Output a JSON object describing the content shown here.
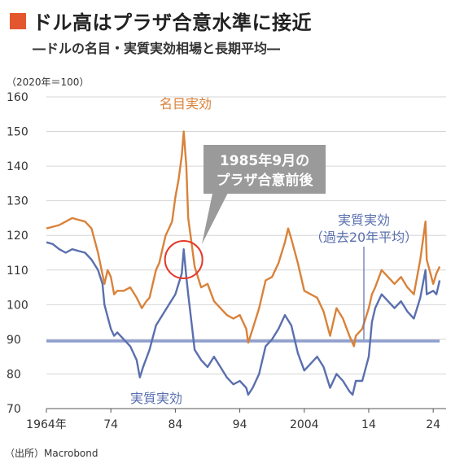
{
  "header": {
    "title": "ドル高はプラザ合意水準に接近",
    "subtitle": "―ドルの名目・実質実効相場と長期平均―"
  },
  "unit_label": "（2020年＝100）",
  "source": "（出所）Macrobond",
  "colors": {
    "nominal": "#d9823a",
    "real": "#5a6fae",
    "average": "#8f9fce",
    "accent": "#e4572e",
    "circle": "#e33a2a",
    "callout": "#9a9a9a"
  },
  "chart_data": {
    "type": "line",
    "xlim": [
      1964,
      2026
    ],
    "ylim": [
      70,
      160
    ],
    "y_ticks": [
      70,
      80,
      90,
      100,
      110,
      120,
      130,
      140,
      150,
      160
    ],
    "x_ticks": [
      {
        "value": 1964,
        "label": "1964年"
      },
      {
        "value": 1974,
        "label": "74"
      },
      {
        "value": 1984,
        "label": "84"
      },
      {
        "value": 1994,
        "label": "94"
      },
      {
        "value": 2004,
        "label": "2004"
      },
      {
        "value": 2014,
        "label": "14"
      },
      {
        "value": 2024,
        "label": "24"
      }
    ],
    "series": [
      {
        "name": "名目実効",
        "x": [
          1964,
          1965,
          1966,
          1967,
          1968,
          1969,
          1970,
          1971,
          1972,
          1973,
          1973.5,
          1974,
          1974.5,
          1975,
          1976,
          1977,
          1978,
          1978.8,
          1979.5,
          1980,
          1981,
          1981.5,
          1982,
          1982.5,
          1983,
          1983.5,
          1984,
          1984.5,
          1985,
          1985.3,
          1985.7,
          1986,
          1986.5,
          1987,
          1988,
          1989,
          1990,
          1991,
          1992,
          1993,
          1994,
          1995,
          1995.3,
          1996,
          1997,
          1998,
          1999,
          2000,
          2001,
          2001.5,
          2002,
          2003,
          2004,
          2005,
          2006,
          2007,
          2008,
          2008.5,
          2009,
          2010,
          2011,
          2011.7,
          2012,
          2013,
          2014,
          2014.5,
          2015,
          2016,
          2017,
          2018,
          2019,
          2020,
          2021,
          2022,
          2022.8,
          2023,
          2024,
          2024.5,
          2025
        ],
        "values": [
          122,
          122.5,
          123,
          124,
          125,
          124.5,
          124,
          122,
          115,
          106,
          110,
          108,
          103,
          104,
          104,
          105,
          102,
          99,
          101,
          102,
          110,
          112,
          116,
          120,
          122,
          124,
          131,
          136,
          143,
          150,
          140,
          125,
          118,
          111,
          105,
          106,
          101,
          99,
          97,
          96,
          97,
          93,
          89,
          93,
          99,
          107,
          108,
          112,
          118,
          122,
          119,
          112,
          104,
          103,
          102,
          98,
          91,
          95,
          99,
          96,
          91,
          88,
          91,
          93,
          99,
          103,
          105,
          110,
          108,
          106,
          108,
          105,
          103,
          113,
          124,
          113,
          106,
          109,
          111
        ]
      },
      {
        "name": "実質実効",
        "x": [
          1964,
          1965,
          1966,
          1967,
          1968,
          1969,
          1970,
          1971,
          1972,
          1972.7,
          1973,
          1974,
          1974.5,
          1975,
          1976,
          1977,
          1978,
          1978.5,
          1979,
          1980,
          1981,
          1982,
          1983,
          1984,
          1985,
          1985.3,
          1985.7,
          1986,
          1986.5,
          1987,
          1988,
          1989,
          1990,
          1991,
          1992,
          1993,
          1994,
          1995,
          1995.3,
          1996,
          1997,
          1998,
          1999,
          2000,
          2001,
          2002,
          2003,
          2004,
          2005,
          2006,
          2007,
          2008,
          2009,
          2010,
          2011,
          2011.5,
          2012,
          2013,
          2014,
          2014.5,
          2015,
          2016,
          2017,
          2018,
          2019,
          2020,
          2021,
          2022,
          2022.8,
          2023,
          2024,
          2024.5,
          2025
        ],
        "values": [
          118,
          117.5,
          116,
          115,
          116,
          115.5,
          115,
          113,
          110,
          106,
          100,
          93,
          91,
          92,
          90,
          88,
          84,
          79,
          82,
          87,
          94,
          97,
          100,
          103,
          109,
          116,
          108,
          103,
          95,
          87,
          84,
          82,
          85,
          82,
          79,
          77,
          78,
          76,
          74,
          76,
          80,
          88,
          90,
          93,
          97,
          94,
          86,
          81,
          83,
          85,
          82,
          76,
          80,
          78,
          75,
          74,
          78,
          78,
          85,
          95,
          99,
          103,
          101,
          99,
          101,
          98,
          96,
          102,
          110,
          103,
          104,
          103,
          107
        ]
      },
      {
        "name": "実質実効（過去20年平均）",
        "x": [
          1964,
          2025
        ],
        "values": [
          89.5,
          89.5
        ]
      }
    ]
  },
  "annotations": {
    "nominal_label": "名目実効",
    "real_label": "実質実効",
    "average_label_line1": "実質実効",
    "average_label_line2": "（過去20年平均）",
    "plaza_line1": "1985年9月の",
    "plaza_line2": "プラザ合意前後"
  }
}
